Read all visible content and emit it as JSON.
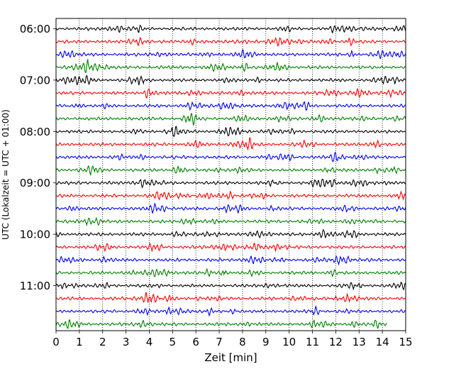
{
  "chart_data": {
    "type": "line",
    "title": "",
    "xlabel": "Zeit  [min]",
    "ylabel": "UTC (Lokalzeit = UTC + 01:00)",
    "xlim": [
      0,
      15
    ],
    "x_ticks": [
      0,
      1,
      2,
      3,
      4,
      5,
      6,
      7,
      8,
      9,
      10,
      11,
      12,
      13,
      14,
      15
    ],
    "y_tick_labels": [
      "06:00",
      "07:00",
      "08:00",
      "09:00",
      "10:00",
      "11:00"
    ],
    "y_ticks_minutes": [
      0,
      60,
      120,
      180,
      240,
      300
    ],
    "row_interval_min": 15,
    "first_row": "06:00",
    "row_count": 24,
    "color_cycle": [
      "#000000",
      "#ff0000",
      "#0000ff",
      "#008000"
    ],
    "last_row_end_min": 14.2,
    "grid": {
      "vertical": "dotted",
      "horizontal": false
    },
    "legend": "none"
  }
}
